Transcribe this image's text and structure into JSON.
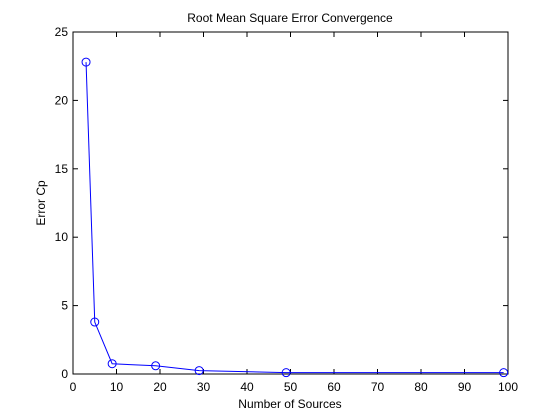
{
  "chart_data": {
    "type": "line",
    "title": "Root Mean Square Error Convergence",
    "xlabel": "Number of Sources",
    "ylabel": "Error Cp",
    "xlim": [
      0,
      100
    ],
    "ylim": [
      0,
      25
    ],
    "xticks": [
      0,
      10,
      20,
      30,
      40,
      50,
      60,
      70,
      80,
      90,
      100
    ],
    "yticks": [
      0,
      5,
      10,
      15,
      20,
      25
    ],
    "grid": false,
    "series": [
      {
        "color": "#0000ff",
        "marker": "circle",
        "x": [
          3,
          5,
          9,
          19,
          29,
          49,
          99
        ],
        "y": [
          22.8,
          3.8,
          0.75,
          0.6,
          0.25,
          0.1,
          0.1
        ]
      }
    ]
  }
}
